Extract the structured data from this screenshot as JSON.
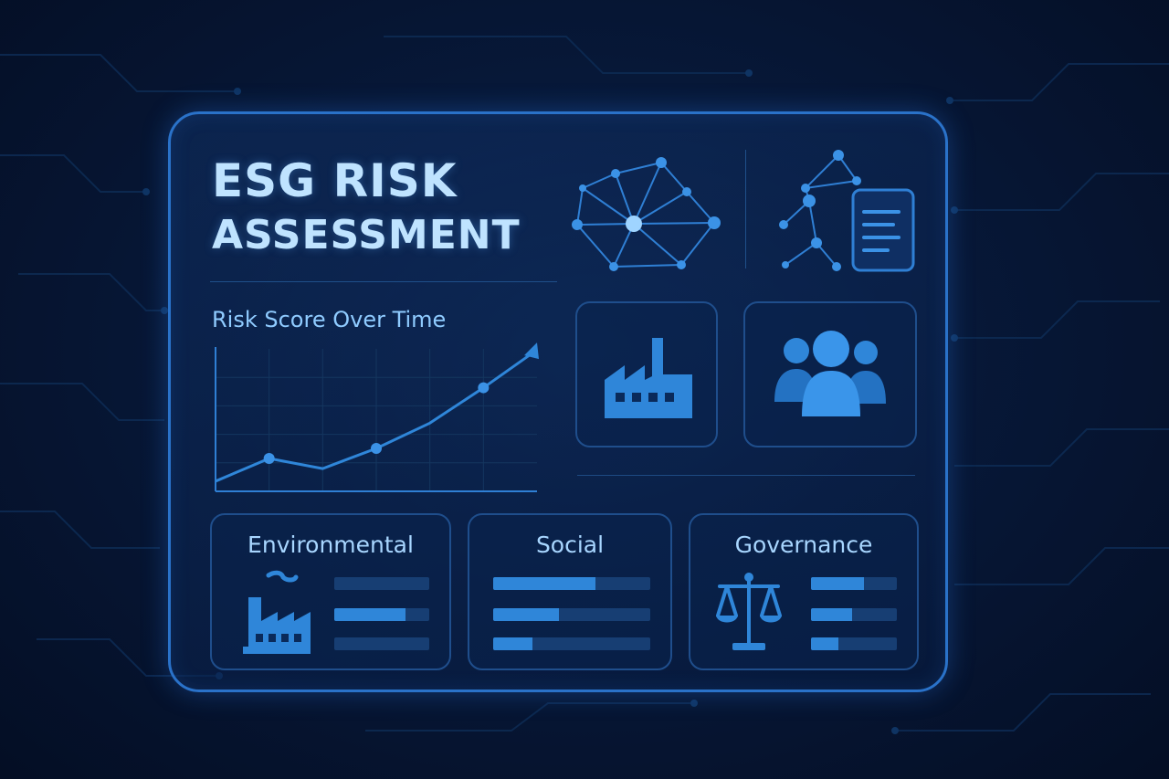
{
  "header": {
    "title_line1": "ESG RISK",
    "title_line2": "ASSESSMENT"
  },
  "chart": {
    "title": "Risk Score Over Time"
  },
  "chart_data": {
    "type": "line",
    "title": "Risk Score Over Time",
    "xlabel": "",
    "ylabel": "",
    "x": [
      0,
      1,
      2,
      3,
      4,
      5,
      6
    ],
    "values": [
      4,
      13,
      9,
      17,
      27,
      41,
      56
    ],
    "markers": [
      1,
      3,
      5
    ],
    "ylim": [
      0,
      60
    ],
    "grid": true,
    "trend_arrow": true
  },
  "icons": {
    "network": "network-icon",
    "report": "network-report-icon",
    "factory": "factory-icon",
    "people": "people-icon",
    "pollution": "factory-smoke-icon",
    "scales": "scales-icon"
  },
  "cards": [
    {
      "title": "Environmental",
      "levels": [
        0.0,
        0.75,
        0.0
      ]
    },
    {
      "title": "Social",
      "levels": [
        0.65,
        0.42,
        0.25
      ]
    },
    {
      "title": "Governance",
      "levels": [
        0.62,
        0.48,
        0.32
      ]
    }
  ],
  "colors": {
    "accent": "#2f86d9",
    "text": "#bfe3ff",
    "border": "#2a72c9",
    "background": "#071838"
  }
}
